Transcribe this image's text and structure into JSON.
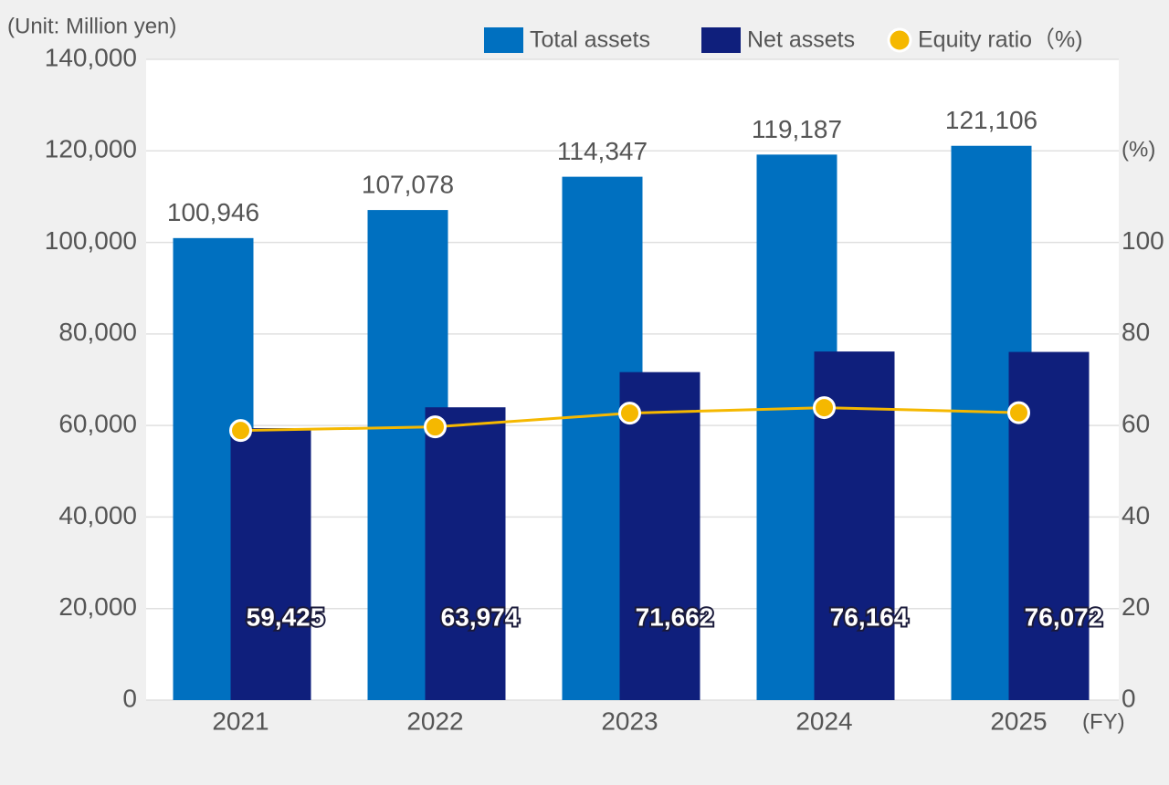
{
  "chart_data": {
    "type": "bar",
    "unit_label": "(Unit: Million yen)",
    "x_label": "(FY)",
    "y2_label": "(%)",
    "categories": [
      "2021",
      "2022",
      "2023",
      "2024",
      "2025"
    ],
    "series": [
      {
        "name": "Total assets",
        "color": "#0070c0",
        "values": [
          100946,
          107078,
          114347,
          119187,
          121106
        ],
        "value_labels": [
          "100,946",
          "107,078",
          "114,347",
          "119,187",
          "121,106"
        ]
      },
      {
        "name": "Net assets",
        "color": "#0f1f7c",
        "values": [
          59425,
          63974,
          71662,
          76164,
          76072
        ],
        "value_labels": [
          "59,425",
          "63,974",
          "71,662",
          "76,164",
          "76,072"
        ]
      },
      {
        "name": "Equity ratio（%)",
        "type": "line",
        "axis": "y2",
        "color": "#f5b800",
        "values": [
          58.9,
          59.7,
          62.7,
          63.9,
          62.8
        ]
      }
    ],
    "ylim": [
      0,
      140000
    ],
    "yticks": [
      0,
      {
        "value": 20000,
        "label": "20,000"
      },
      {
        "value": 40000,
        "label": "40,000"
      },
      {
        "value": 60000,
        "label": "60,000"
      },
      {
        "value": 80000,
        "label": "80,000"
      },
      {
        "value": 100000,
        "label": "100,000"
      },
      {
        "value": 120000,
        "label": "120,000"
      },
      {
        "value": 140000,
        "label": "140,000"
      }
    ],
    "y2lim": [
      0,
      140
    ],
    "y2ticks": [
      0,
      20,
      40,
      60,
      80,
      100
    ],
    "grid": true
  }
}
